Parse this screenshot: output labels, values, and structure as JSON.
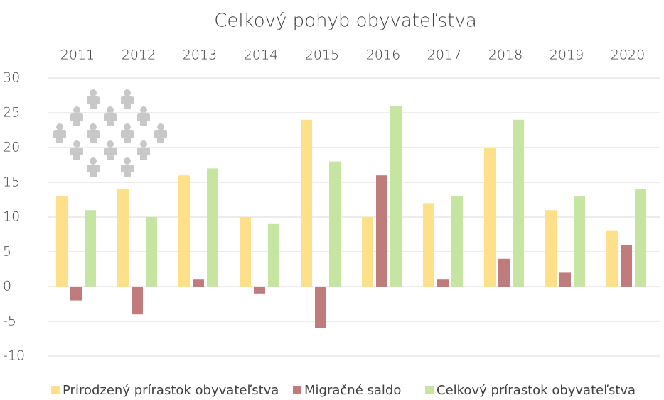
{
  "chart_data": {
    "type": "bar",
    "title": "Celkový pohyb obyvateľstva",
    "categories": [
      "2011",
      "2012",
      "2013",
      "2014",
      "2015",
      "2016",
      "2017",
      "2018",
      "2019",
      "2020"
    ],
    "series": [
      {
        "name": "Prirodzený prírastok obyvateľstva",
        "color": "#ffe08a",
        "values": [
          13,
          14,
          16,
          10,
          24,
          10,
          12,
          20,
          11,
          8
        ]
      },
      {
        "name": "Migračné saldo",
        "color": "#c07b7c",
        "values": [
          -2,
          -4,
          1,
          -1,
          -6,
          16,
          1,
          4,
          2,
          6
        ]
      },
      {
        "name": "Celkový prírastok obyvateľstva",
        "color": "#c6e4a2",
        "values": [
          11,
          10,
          17,
          9,
          18,
          26,
          13,
          24,
          13,
          14
        ]
      }
    ],
    "ylim": [
      -10,
      30
    ],
    "yticks": [
      -10,
      -5,
      0,
      5,
      10,
      15,
      20,
      25,
      30
    ],
    "grid": true,
    "legend": "bottom"
  }
}
